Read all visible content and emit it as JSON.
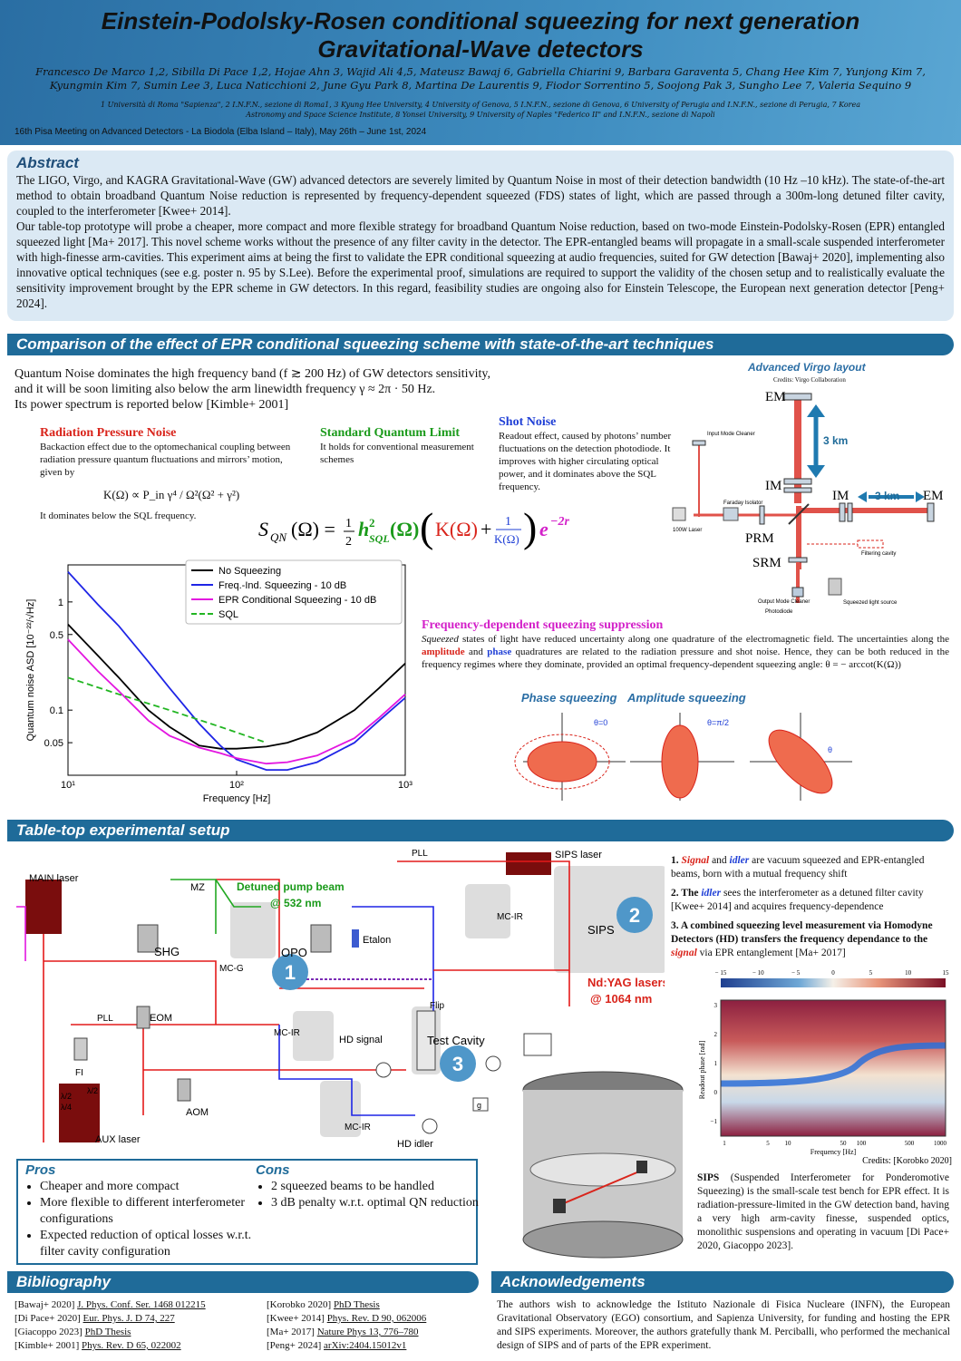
{
  "header": {
    "title_line1": "Einstein-Podolsky-Rosen conditional squeezing for next generation",
    "title_line2": "Gravitational-Wave detectors",
    "authors_line1": "Francesco De Marco 1,2, Sibilla Di Pace 1,2, Hojae Ahn 3, Wajid Ali 4,5, Mateusz Bawaj 6, Gabriella Chiarini 9, Barbara Garaventa 5, Chang Hee Kim 7, Yunjong Kim 7,",
    "authors_line2": "Kyungmin Kim 7, Sumin Lee 3, Luca Naticchioni 2, June Gyu Park 8, Martina De Laurentis 9, Fiodor Sorrentino 5, Soojong Pak 3, Sungho Lee 7, Valeria Sequino 9",
    "affil_line1": "1 Università di Roma \"Sapienza\", 2 I.N.F.N., sezione di Roma1, 3 Kyung Hee University, 4 University of Genova, 5 I.N.F.N., sezione di Genova, 6 University of Perugia and I.N.F.N., sezione di Perugia, 7 Korea",
    "affil_line2": "Astronomy and Space Science Institute, 8 Yonsei University, 9 University of Naples \"Federico II\" and I.N.F.N., sezione di Napoli",
    "meeting": "16th Pisa Meeting on Advanced Detectors -  La Biodola (Elba Island – Italy), May 26th – June 1st, 2024"
  },
  "abstract": {
    "heading": "Abstract",
    "p1": "The LIGO, Virgo, and KAGRA Gravitational-Wave (GW) advanced detectors are severely limited by Quantum Noise in most of their detection bandwidth (10 Hz –10 kHz). The state-of-the-art method to obtain broadband Quantum Noise reduction is represented by frequency-dependent squeezed (FDS) states of light, which are passed through a 300m-long detuned filter cavity, coupled to the interferometer [Kwee+ 2014].",
    "p2": "Our table-top prototype will probe a cheaper, more compact and more flexible strategy for broadband Quantum Noise reduction, based on two-mode Einstein-Podolsky-Rosen (EPR) entangled squeezed light [Ma+ 2017]. This novel scheme works without the presence of any filter cavity in the detector. The EPR-entangled beams will propagate in a small-scale suspended interferometer with high-finesse arm-cavities. This experiment aims at being the first to validate the EPR conditional squeezing at audio frequencies, suited for GW detection [Bawaj+ 2020], implementing also innovative optical techniques (see e.g. poster n. 95 by S.Lee). Before the experimental proof, simulations are required to support the validity of the chosen setup and to realistically evaluate the sensitivity improvement brought by the EPR scheme in GW detectors. In this regard, feasibility studies are ongoing also for Einstein Telescope, the European next generation detector [Peng+ 2024]."
  },
  "comparison": {
    "heading": "Comparison of the effect of EPR conditional squeezing scheme with state-of-the-art techniques",
    "intro1": "Quantum Noise dominates the high frequency band (f ≳ 200 Hz) of GW detectors sensitivity,",
    "intro2": "and it will be soon limiting also below the arm linewidth frequency γ ≈ 2π · 50 Hz.",
    "intro3": "Its power spectrum is reported below [Kimble+ 2001]",
    "rpn_title": "Radiation Pressure Noise",
    "rpn_text": "Backaction effect due to the optomechanical coupling between radiation pressure quantum fluctuations and mirrors’ motion, given by",
    "rpn_formula": "K(Ω) ∝ P_in γ⁴ / Ω²(Ω² + γ²)",
    "rpn_below": "It dominates below the SQL frequency.",
    "sql_title": "Standard Quantum Limit",
    "sql_text": "It holds for conventional measurement schemes",
    "shot_title": "Shot Noise",
    "shot_text": "Readout effect, caused by photons’ number fluctuations on the detection photodiode. It improves with higher circulating optical power, and it dominates above the SQL frequency.",
    "fds_title": "Frequency-dependent squeezing suppression",
    "fds_text_a": "Squeezed",
    "fds_text_b": " states of light have reduced uncertainty along one quadrature of the electromagnetic field. The uncertainties along the ",
    "fds_amp": "amplitude",
    "fds_and": " and ",
    "fds_phase": "phase",
    "fds_text_c": " quadratures are related to the radiation pressure and shot noise. Hence, they can be both reduced in the frequency regimes where they dominate, provided an optimal frequency-dependent squeezing angle: θ = − arccot(K(Ω))",
    "phase_sq": "Phase squeezing",
    "amp_sq": "Amplitude squeezing",
    "virgo_title": "Advanced Virgo layout",
    "virgo_credit": "Credits: Virgo Collaboration",
    "virgo_labels": {
      "em": "EM",
      "im": "IM",
      "prm": "PRM",
      "srm": "SRM",
      "km3": "3 km",
      "km3b": "3 km",
      "laser": "100W Laser",
      "imc": "Input Mode Cleaner",
      "fi": "Faraday Isolator",
      "omc": "Output Mode Cleaner",
      "pd": "Photodiode",
      "sls": "Squeezed light source",
      "fc": "Filtering cavity"
    }
  },
  "chart_data": {
    "type": "line",
    "xlabel": "Frequency [Hz]",
    "ylabel": "Quantum noise ASD [10⁻²²/√Hz]",
    "xscale": "log",
    "yscale": "log",
    "xlim": [
      10,
      1000
    ],
    "ylim": [
      0.025,
      2.2
    ],
    "xticks": [
      "10¹",
      "10²",
      "10³"
    ],
    "yticks": [
      "1",
      "0.5",
      "0.1",
      "0.05"
    ],
    "legend": "top-right",
    "series": [
      {
        "name": "No Squeezing",
        "color": "#000000",
        "x": [
          10,
          15,
          20,
          30,
          40,
          60,
          80,
          100,
          150,
          200,
          300,
          500,
          700,
          1000
        ],
        "y": [
          0.62,
          0.32,
          0.2,
          0.1,
          0.07,
          0.047,
          0.044,
          0.044,
          0.046,
          0.05,
          0.062,
          0.1,
          0.16,
          0.27
        ]
      },
      {
        "name": "Freq.-Ind. Squeezing - 10 dB",
        "color": "#1f25e6",
        "x": [
          10,
          15,
          20,
          30,
          40,
          60,
          80,
          100,
          150,
          200,
          300,
          500,
          700,
          1000
        ],
        "y": [
          1.9,
          0.95,
          0.6,
          0.28,
          0.16,
          0.075,
          0.047,
          0.035,
          0.028,
          0.028,
          0.033,
          0.05,
          0.08,
          0.13
        ]
      },
      {
        "name": "EPR Conditional Squeezing - 10 dB",
        "color": "#e316e0",
        "x": [
          10,
          15,
          20,
          30,
          40,
          60,
          80,
          100,
          150,
          200,
          300,
          500,
          700,
          1000
        ],
        "y": [
          0.45,
          0.23,
          0.15,
          0.08,
          0.058,
          0.045,
          0.04,
          0.036,
          0.032,
          0.033,
          0.038,
          0.055,
          0.085,
          0.14
        ]
      },
      {
        "name": "SQL",
        "color": "#22b522",
        "dashed": true,
        "x": [
          10,
          20,
          40,
          80,
          150
        ],
        "y": [
          0.2,
          0.14,
          0.1,
          0.07,
          0.05
        ]
      }
    ]
  },
  "setup": {
    "heading": "Table-top experimental setup",
    "labels": {
      "main_laser": "MAIN laser",
      "aux_laser": "AUX laser",
      "mz": "MZ",
      "shg": "SHG",
      "pump": "Detuned pump beam",
      "pump_nm": "@ 532 nm",
      "mcg": "MC-G",
      "opo": "OPO",
      "etalon": "Etalon",
      "pll1": "PLL",
      "pll2": "PLL",
      "eom": "EOM",
      "aom": "AOM",
      "fi": "FI",
      "mcir1": "MC-IR",
      "mcir2": "MC-IR",
      "mcir3": "MC-IR",
      "hd_signal": "HD signal",
      "hd_idler": "HD idler",
      "test_cavity": "Test Cavity",
      "flip": "Flip",
      "sips_laser": "SIPS laser",
      "sips": "SIPS",
      "ndyag": "Nd:YAG lasers",
      "ndyag_nm": "@ 1064 nm",
      "n1": "1",
      "n2": "2",
      "n3": "3",
      "g": "g",
      "lam2": "λ/2",
      "lam4": "λ/4"
    },
    "item1_a": "1. ",
    "item1_signal": "Signal",
    "item1_b": " and ",
    "item1_idler": "idler",
    "item1_c": " are vacuum squeezed and EPR-entangled beams, born with a mutual frequency shift",
    "item2_a": "2. The ",
    "item2_idler": "idler",
    "item2_b": " sees the interferometer as a detuned filter cavity [Kwee+ 2014] and acquires frequency-dependence",
    "item3_a": "3. A combined squeezing level measurement via Homodyne Detectors (HD) transfers the frequency dependance to the ",
    "item3_signal": "signal",
    "item3_b": " via EPR entanglement [Ma+ 2017]",
    "heatmap_cbar": [
      "− 15",
      "− 10",
      "− 5",
      "0",
      "5",
      "10",
      "15"
    ],
    "heatmap_ylabel": "Readout phase [rad]",
    "heatmap_xlabel": "Frequency [Hz]",
    "heatmap_yticks": [
      "3",
      "2",
      "1",
      "0",
      "−1"
    ],
    "heatmap_xticks": [
      "1",
      "5",
      "10",
      "50",
      "100",
      "500",
      "1000"
    ],
    "heatmap_credit": "Credits: [Korobko 2020]",
    "sips_bold": "SIPS",
    "sips_text": " (Suspended Interferometer for Ponderomotive Squeezing) is the small-scale test bench for EPR effect. It is radiation-pressure-limited in the GW detection band, having a very high arm-cavity finesse, suspended optics, monolithic suspensions and operating in vacuum [Di Pace+ 2020, Giacoppo 2023]."
  },
  "pros": {
    "heading": "Pros",
    "items": [
      "Cheaper and more compact",
      "More flexible to different interferometer configurations",
      "Expected reduction of optical losses w.r.t. filter cavity configuration"
    ]
  },
  "cons": {
    "heading": "Cons",
    "items": [
      "2 squeezed beams to be handled",
      "3 dB penalty w.r.t. optimal QN reduction"
    ]
  },
  "bibliography": {
    "heading": "Bibliography",
    "col1": [
      [
        "[Bawaj+ 2020] ",
        "J. Phys. Conf. Ser. 1468 012215"
      ],
      [
        "[Di Pace+ 2020] ",
        "Eur. Phys. J. D 74, 227"
      ],
      [
        "[Giacoppo 2023] ",
        "PhD Thesis"
      ],
      [
        "[Kimble+ 2001] ",
        "Phys. Rev. D 65, 022002"
      ]
    ],
    "col2": [
      [
        "[Korobko 2020] ",
        "PhD Thesis"
      ],
      [
        "[Kwee+ 2014] ",
        "Phys. Rev. D 90, 062006"
      ],
      [
        "[Ma+ 2017] ",
        "Nature Phys 13, 776–780"
      ],
      [
        "[Peng+ 2024] ",
        "arXiv:2404.15012v1"
      ]
    ]
  },
  "acknowledgements": {
    "heading": "Acknowledgements",
    "text": "The authors wish to acknowledge the Istituto Nazionale di Fisica Nucleare (INFN), the European Gravitational Observatory (EGO) consortium, and Sapienza University, for funding and hosting the EPR and SIPS experiments. Moreover, the authors gratefully thank M. Perciballi, who performed the mechanical design of SIPS and of parts of the EPR experiment."
  },
  "colors": {
    "header": "#2a6ea3",
    "section": "#1f6b99",
    "abstract_bg": "#dbe9f4",
    "red": "#d9241b",
    "green": "#1a9a1a",
    "blue": "#1f3fd6",
    "magenta": "#d321c9"
  }
}
